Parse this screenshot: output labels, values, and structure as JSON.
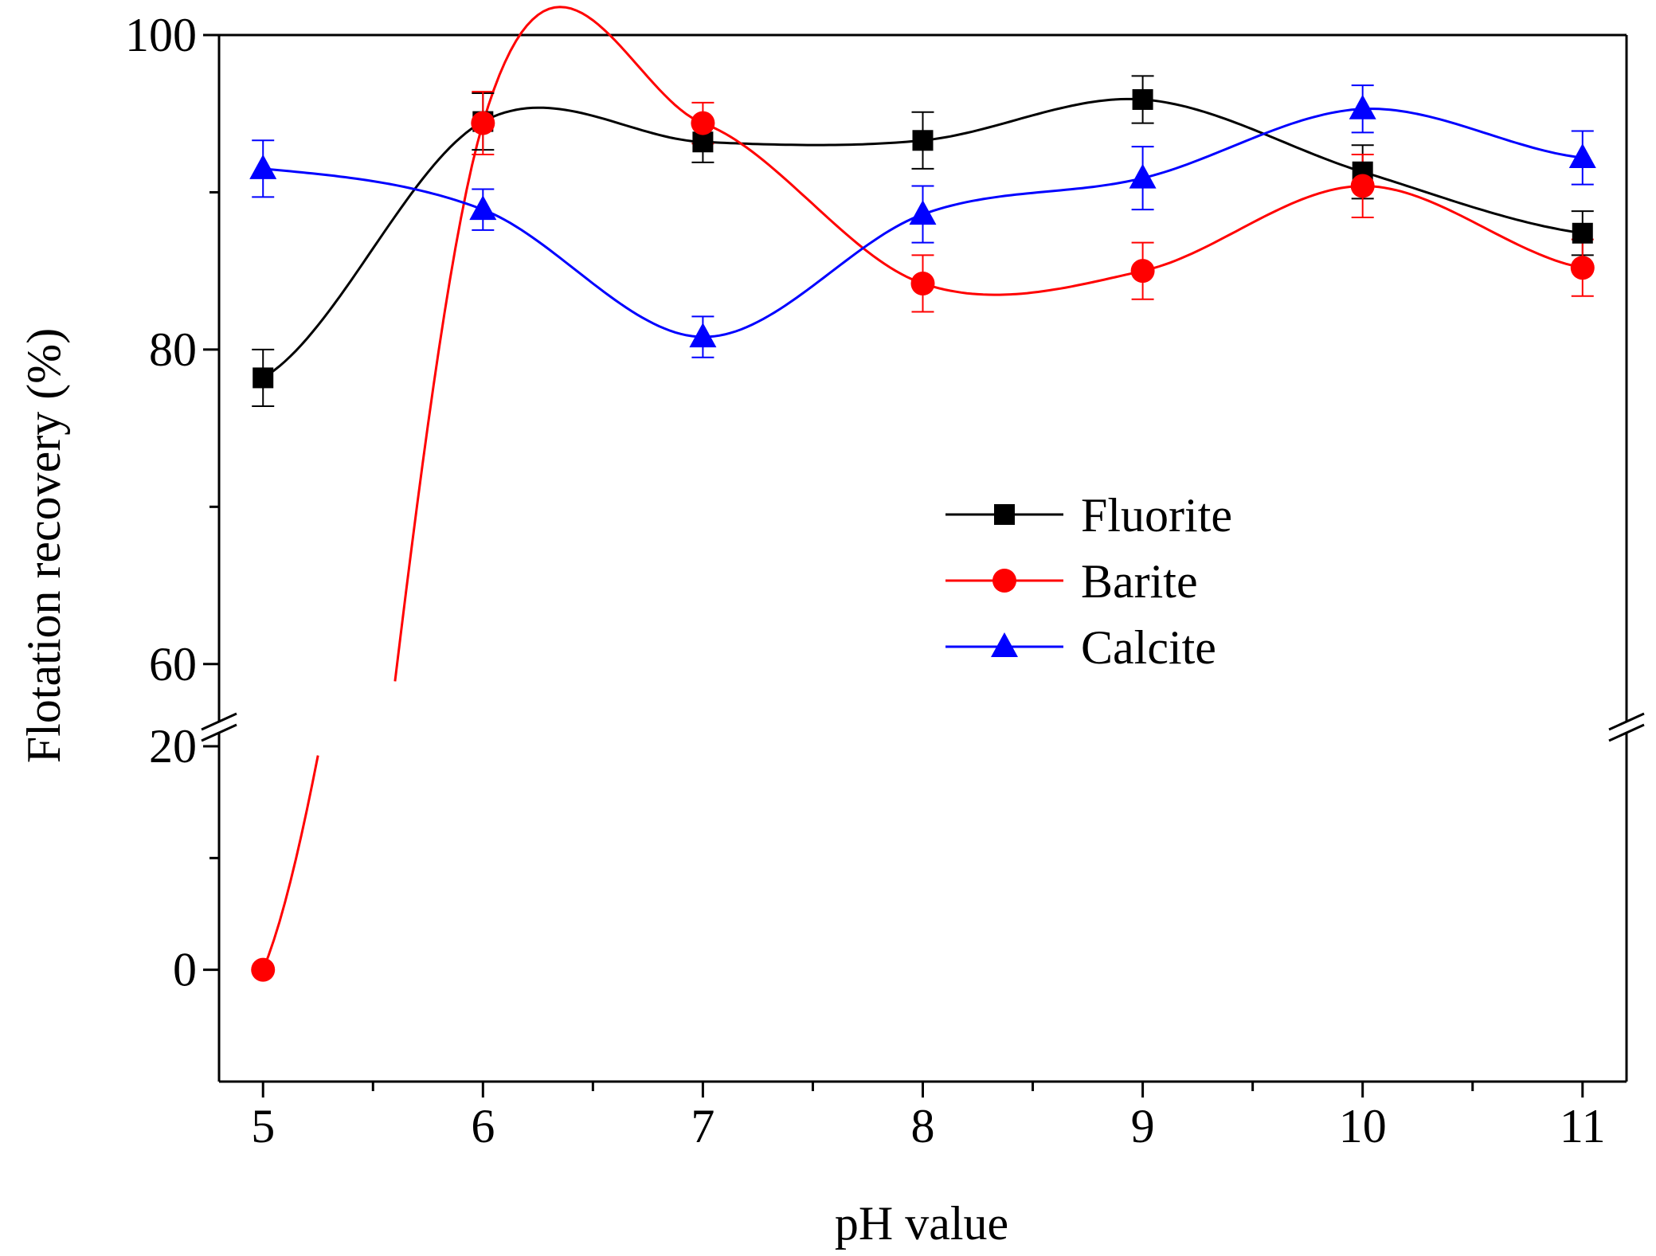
{
  "chart_data": {
    "type": "line",
    "title": "",
    "xlabel": "pH value",
    "ylabel": "Flotation recovery (%)",
    "x": [
      5,
      6,
      7,
      8,
      9,
      10,
      11
    ],
    "xlim": [
      4.8,
      11.2
    ],
    "x_ticks": [
      "5",
      "6",
      "7",
      "8",
      "9",
      "10",
      "11"
    ],
    "y_axis_break": {
      "lower_segment": [
        -10,
        20
      ],
      "upper_segment": [
        57,
        100
      ]
    },
    "y_ticks": [
      "0",
      "20",
      "60",
      "80",
      "100"
    ],
    "grid": false,
    "legend_position": "center-right",
    "series": [
      {
        "name": "Fluorite",
        "color": "#000000",
        "marker": "square",
        "values": [
          78.2,
          94.5,
          93.2,
          93.3,
          95.9,
          91.3,
          87.4
        ],
        "errors": [
          1.8,
          1.8,
          1.3,
          1.8,
          1.5,
          1.7,
          1.4
        ]
      },
      {
        "name": "Barite",
        "color": "#ff0000",
        "marker": "circle",
        "values": [
          0,
          94.4,
          94.4,
          84.2,
          85.0,
          90.4,
          85.2
        ],
        "errors": [
          0,
          2.0,
          1.3,
          1.8,
          1.8,
          2.0,
          1.8
        ]
      },
      {
        "name": "Calcite",
        "color": "#0000ff",
        "marker": "triangle",
        "values": [
          91.5,
          88.9,
          80.8,
          88.6,
          90.9,
          95.3,
          92.2
        ],
        "errors": [
          1.8,
          1.3,
          1.3,
          1.8,
          2.0,
          1.5,
          1.7
        ]
      }
    ]
  }
}
